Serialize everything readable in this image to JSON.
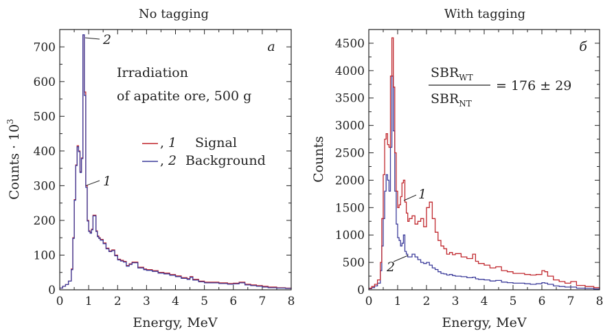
{
  "chart_data": [
    {
      "type": "line",
      "title": "No tagging",
      "panel_label": "a",
      "xlabel": "Energy, MeV",
      "ylabel": "Counts · 10",
      "ylabel_exp": "3",
      "xlim": [
        0,
        8
      ],
      "ylim": [
        0,
        750
      ],
      "xticks": [
        0,
        1,
        2,
        3,
        4,
        5,
        6,
        7,
        8
      ],
      "yticks": [
        0,
        100,
        200,
        300,
        400,
        500,
        600,
        700
      ],
      "annotation_lines": [
        "Irradiation",
        "of apatite ore, 500 g"
      ],
      "legend": [
        {
          "marker_text": ", ",
          "number": "1",
          "label": "Signal",
          "color": "#c0272d"
        },
        {
          "marker_text": ", ",
          "number": "2",
          "label": "Background",
          "color": "#3b3b9a"
        }
      ],
      "curve_labels": [
        {
          "text": "2",
          "series": "background",
          "x": 0.85,
          "y": 730
        },
        {
          "text": "1",
          "series": "signal",
          "x": 0.95,
          "y": 300
        }
      ],
      "series": [
        {
          "key": "signal",
          "color": "#c0272d",
          "x": [
            0.0,
            0.1,
            0.2,
            0.3,
            0.4,
            0.45,
            0.5,
            0.55,
            0.6,
            0.65,
            0.7,
            0.75,
            0.8,
            0.85,
            0.9,
            0.95,
            1.0,
            1.05,
            1.1,
            1.15,
            1.2,
            1.25,
            1.3,
            1.35,
            1.4,
            1.5,
            1.6,
            1.7,
            1.8,
            1.9,
            2.0,
            2.1,
            2.2,
            2.3,
            2.4,
            2.5,
            2.7,
            2.9,
            3.0,
            3.2,
            3.4,
            3.6,
            3.8,
            4.0,
            4.2,
            4.4,
            4.5,
            4.6,
            4.8,
            5.0,
            5.2,
            5.5,
            5.8,
            6.0,
            6.2,
            6.4,
            6.6,
            6.8,
            7.0,
            7.2,
            7.5,
            7.8,
            8.0
          ],
          "y": [
            5,
            10,
            15,
            25,
            60,
            150,
            260,
            360,
            415,
            400,
            340,
            380,
            735,
            570,
            300,
            200,
            170,
            165,
            175,
            215,
            215,
            170,
            155,
            150,
            145,
            135,
            120,
            112,
            115,
            100,
            88,
            85,
            82,
            70,
            75,
            80,
            65,
            60,
            58,
            55,
            50,
            48,
            44,
            40,
            35,
            32,
            38,
            30,
            25,
            22,
            22,
            20,
            18,
            19,
            22,
            16,
            14,
            12,
            10,
            8,
            6,
            5,
            4
          ]
        },
        {
          "key": "background",
          "color": "#3b3b9a",
          "x": [
            0.0,
            0.1,
            0.2,
            0.3,
            0.4,
            0.45,
            0.5,
            0.55,
            0.6,
            0.65,
            0.7,
            0.75,
            0.8,
            0.85,
            0.9,
            0.95,
            1.0,
            1.05,
            1.1,
            1.15,
            1.2,
            1.25,
            1.3,
            1.35,
            1.4,
            1.5,
            1.6,
            1.7,
            1.8,
            1.9,
            2.0,
            2.1,
            2.2,
            2.3,
            2.4,
            2.5,
            2.7,
            2.9,
            3.0,
            3.2,
            3.4,
            3.6,
            3.8,
            4.0,
            4.2,
            4.4,
            4.5,
            4.6,
            4.8,
            5.0,
            5.2,
            5.5,
            5.8,
            6.0,
            6.2,
            6.4,
            6.6,
            6.8,
            7.0,
            7.2,
            7.5,
            7.8,
            8.0
          ],
          "y": [
            5,
            10,
            15,
            25,
            58,
            148,
            258,
            358,
            412,
            398,
            338,
            378,
            735,
            560,
            295,
            198,
            168,
            163,
            173,
            213,
            213,
            168,
            153,
            148,
            143,
            133,
            118,
            110,
            113,
            98,
            86,
            83,
            80,
            68,
            73,
            78,
            63,
            58,
            56,
            53,
            48,
            46,
            42,
            38,
            33,
            30,
            36,
            28,
            23,
            20,
            20,
            18,
            16,
            17,
            20,
            14,
            12,
            10,
            8,
            6,
            5,
            4,
            3
          ]
        }
      ]
    },
    {
      "type": "line",
      "title": "With tagging",
      "panel_label": "б",
      "xlabel": "Energy, MeV",
      "ylabel": "Counts",
      "xlim": [
        0,
        8
      ],
      "ylim": [
        0,
        4750
      ],
      "xticks": [
        0,
        1,
        2,
        3,
        4,
        5,
        6,
        7,
        8
      ],
      "yticks": [
        0,
        500,
        1000,
        1500,
        2000,
        2500,
        3000,
        3500,
        4000,
        4500
      ],
      "formula": {
        "num": "SBR",
        "num_sub": "WT",
        "den": "SBR",
        "den_sub": "NT",
        "rhs": "= 176 ± 29"
      },
      "curve_labels": [
        {
          "text": "1",
          "series": "signal",
          "x": 1.4,
          "y": 1700
        },
        {
          "text": "2",
          "series": "background",
          "x": 1.2,
          "y": 400
        }
      ],
      "series": [
        {
          "key": "signal",
          "color": "#c0272d",
          "x": [
            0.0,
            0.1,
            0.2,
            0.3,
            0.4,
            0.45,
            0.5,
            0.55,
            0.6,
            0.65,
            0.7,
            0.75,
            0.8,
            0.85,
            0.9,
            0.95,
            1.0,
            1.05,
            1.1,
            1.15,
            1.2,
            1.25,
            1.3,
            1.35,
            1.4,
            1.5,
            1.6,
            1.7,
            1.8,
            1.9,
            2.0,
            2.1,
            2.2,
            2.3,
            2.4,
            2.5,
            2.6,
            2.7,
            2.8,
            2.9,
            3.0,
            3.2,
            3.4,
            3.6,
            3.7,
            3.8,
            4.0,
            4.2,
            4.4,
            4.6,
            4.8,
            5.0,
            5.2,
            5.4,
            5.6,
            5.8,
            6.0,
            6.1,
            6.2,
            6.4,
            6.6,
            6.8,
            7.0,
            7.2,
            7.5,
            7.8,
            8.0
          ],
          "y": [
            30,
            60,
            100,
            180,
            500,
            1300,
            2100,
            2750,
            2850,
            2650,
            2600,
            3900,
            4600,
            3700,
            2500,
            1800,
            1500,
            1550,
            1700,
            1950,
            2000,
            1600,
            1400,
            1250,
            1300,
            1350,
            1200,
            1250,
            1300,
            1150,
            1500,
            1600,
            1300,
            1050,
            900,
            800,
            750,
            650,
            680,
            640,
            660,
            600,
            570,
            650,
            520,
            480,
            450,
            400,
            420,
            350,
            330,
            300,
            300,
            280,
            270,
            280,
            350,
            330,
            250,
            180,
            150,
            120,
            150,
            80,
            60,
            40,
            30
          ]
        },
        {
          "key": "background",
          "color": "#3b3b9a",
          "x": [
            0.0,
            0.1,
            0.2,
            0.3,
            0.4,
            0.45,
            0.5,
            0.55,
            0.6,
            0.65,
            0.7,
            0.75,
            0.8,
            0.85,
            0.9,
            0.95,
            1.0,
            1.05,
            1.1,
            1.15,
            1.2,
            1.25,
            1.3,
            1.35,
            1.4,
            1.5,
            1.6,
            1.7,
            1.8,
            1.9,
            2.0,
            2.1,
            2.2,
            2.3,
            2.4,
            2.5,
            2.6,
            2.7,
            2.8,
            2.9,
            3.0,
            3.2,
            3.4,
            3.6,
            3.7,
            3.8,
            4.0,
            4.2,
            4.4,
            4.6,
            4.8,
            5.0,
            5.2,
            5.4,
            5.6,
            5.8,
            6.0,
            6.1,
            6.2,
            6.4,
            6.6,
            6.8,
            7.0,
            7.2,
            7.5,
            7.8,
            8.0
          ],
          "y": [
            20,
            40,
            70,
            120,
            350,
            800,
            1300,
            1800,
            2100,
            2000,
            1800,
            2600,
            3900,
            2900,
            1800,
            1200,
            950,
            900,
            800,
            850,
            1000,
            700,
            650,
            600,
            600,
            650,
            600,
            550,
            500,
            480,
            500,
            450,
            400,
            370,
            330,
            300,
            290,
            270,
            280,
            260,
            250,
            240,
            220,
            230,
            200,
            190,
            180,
            160,
            170,
            140,
            130,
            120,
            120,
            110,
            100,
            110,
            130,
            120,
            100,
            70,
            60,
            50,
            50,
            30,
            25,
            15,
            10
          ]
        }
      ]
    }
  ]
}
